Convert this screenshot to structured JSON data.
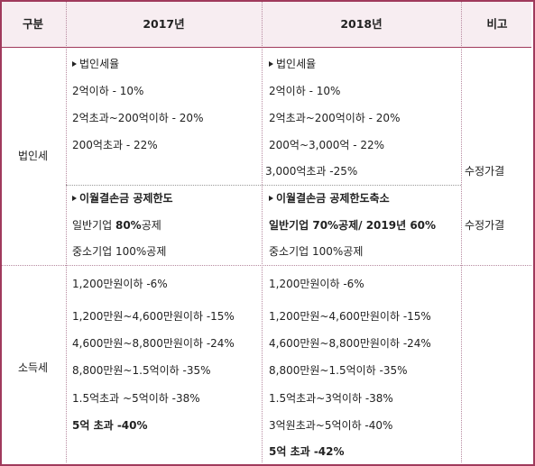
{
  "header": {
    "category": "구분",
    "year1": "2017년",
    "year2": "2018년",
    "note": "비고"
  },
  "corp": {
    "label": "법인세",
    "rate_title_2017": "법인세율",
    "rate_2017": [
      "2억이하 - 10%",
      "2억초과~200억이하 - 20%",
      "200억초과 - 22%"
    ],
    "rate_title_2018": "법인세율",
    "rate_2018": [
      "2억이하 - 10%",
      "2억초과~200억이하 - 20%",
      "200억~3,000억 - 22%",
      "3,000억초과 -25%"
    ],
    "rate_note": "수정가결",
    "loss_title_2017": "이월결손금 공제한도",
    "loss_2017_general_prefix": "일반기업 ",
    "loss_2017_general_bold": "80%",
    "loss_2017_general_suffix": "공제",
    "loss_2017_sme": "중소기업 100%공제",
    "loss_title_2018": "이월결손금 공제한도축소",
    "loss_2018_general": "일반기업 70%공제/ 2019년 60%",
    "loss_2018_sme": "중소기업 100%공제",
    "loss_note": "수정가결"
  },
  "income": {
    "label": "소득세",
    "rows_2017": [
      "1,200만원이하 -6%",
      "1,200만원~4,600만원이하 -15%",
      "4,600만원~8,800만원이하 -24%",
      "8,800만원~1.5억이하 -35%",
      "1.5억초과 ~5억이하 -38%",
      "5억 초과 -40%"
    ],
    "rows_2018": [
      "1,200만원이하 -6%",
      "1,200만원~4,600만원이하 -15%",
      "4,600만원~8,800만원이하 -24%",
      "8,800만원~1.5억이하 -35%",
      "1.5억초과~3억이하 -38%",
      "3억원초과~5억이하 -40%",
      "5억 초과 -42%"
    ]
  }
}
